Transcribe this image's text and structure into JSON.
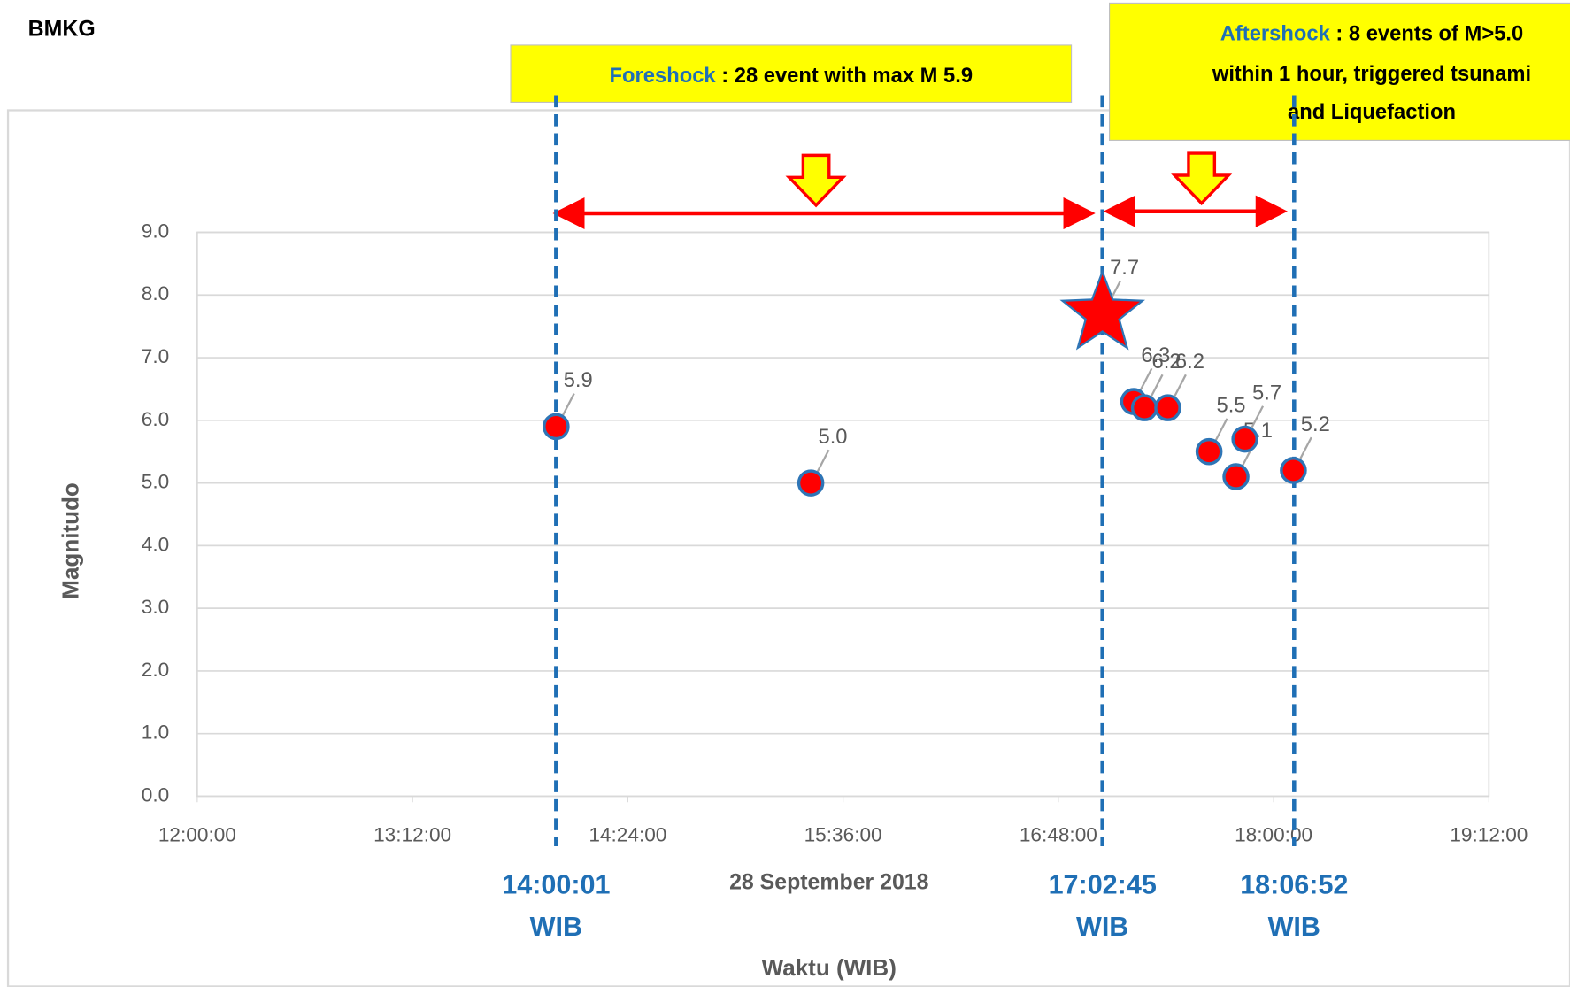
{
  "chart_data": {
    "type": "scatter",
    "source": "BMKG",
    "x_label": "Waktu (WIB)",
    "x_sublabel": "28 September 2018",
    "y_label": "Magnitudo",
    "xlim": [
      12,
      19.2
    ],
    "xticks": [
      {
        "value": 12,
        "label": "12:00:00"
      },
      {
        "value": 13.2,
        "label": "13:12:00"
      },
      {
        "value": 14.4,
        "label": "14:24:00"
      },
      {
        "value": 15.6,
        "label": "15:36:00"
      },
      {
        "value": 16.8,
        "label": "16:48:00"
      },
      {
        "value": 18,
        "label": "18:00:00"
      },
      {
        "value": 19.2,
        "label": "19:12:00"
      }
    ],
    "ylim": [
      0,
      9
    ],
    "yticks": [
      {
        "value": 0,
        "label": "0.0"
      },
      {
        "value": 1,
        "label": "1.0"
      },
      {
        "value": 2,
        "label": "2.0"
      },
      {
        "value": 3,
        "label": "3.0"
      },
      {
        "value": 4,
        "label": "4.0"
      },
      {
        "value": 5,
        "label": "5.0"
      },
      {
        "value": 6,
        "label": "6.0"
      },
      {
        "value": 7,
        "label": "7.0"
      },
      {
        "value": 8,
        "label": "8.0"
      },
      {
        "value": 9,
        "label": "9.0"
      }
    ],
    "grid": true,
    "series": [
      {
        "color": "#ff0000",
        "edge_color": "#2e75b6",
        "marker": "circle",
        "x": [
          14.0003,
          15.42,
          17.22,
          17.28,
          17.41,
          17.64,
          17.79,
          17.84,
          18.11
        ],
        "values": [
          5.9,
          5.0,
          6.3,
          6.2,
          6.2,
          5.5,
          5.1,
          5.7,
          5.2
        ],
        "value_labels": [
          "5.9",
          "5.0",
          "6.3",
          "6.2",
          "6.2",
          "5.5",
          "5.1",
          "5.7",
          "5.2"
        ]
      },
      {
        "color": "#ff0000",
        "edge_color": "#2e75b6",
        "marker": "star",
        "x": [
          17.0458
        ],
        "values": [
          7.7
        ],
        "value_labels": [
          "7.7"
        ]
      }
    ],
    "markers": [
      {
        "x": 14.0003,
        "label": "14:00:01",
        "unit": "WIB"
      },
      {
        "x": 17.0458,
        "label": "17:02:45",
        "unit": "WIB"
      },
      {
        "x": 18.1144,
        "label": "18:06:52",
        "unit": "WIB"
      }
    ],
    "annotations": {
      "foreshock": {
        "keyword": "Foreshock",
        "text": " : 28 event  with  max M 5.9"
      },
      "aftershock": {
        "keyword": "Aftershock",
        "line1": " : 8 events of M>5.0",
        "line2": "within 1 hour, triggered tsunami",
        "line3": "and Liquefaction"
      }
    }
  }
}
